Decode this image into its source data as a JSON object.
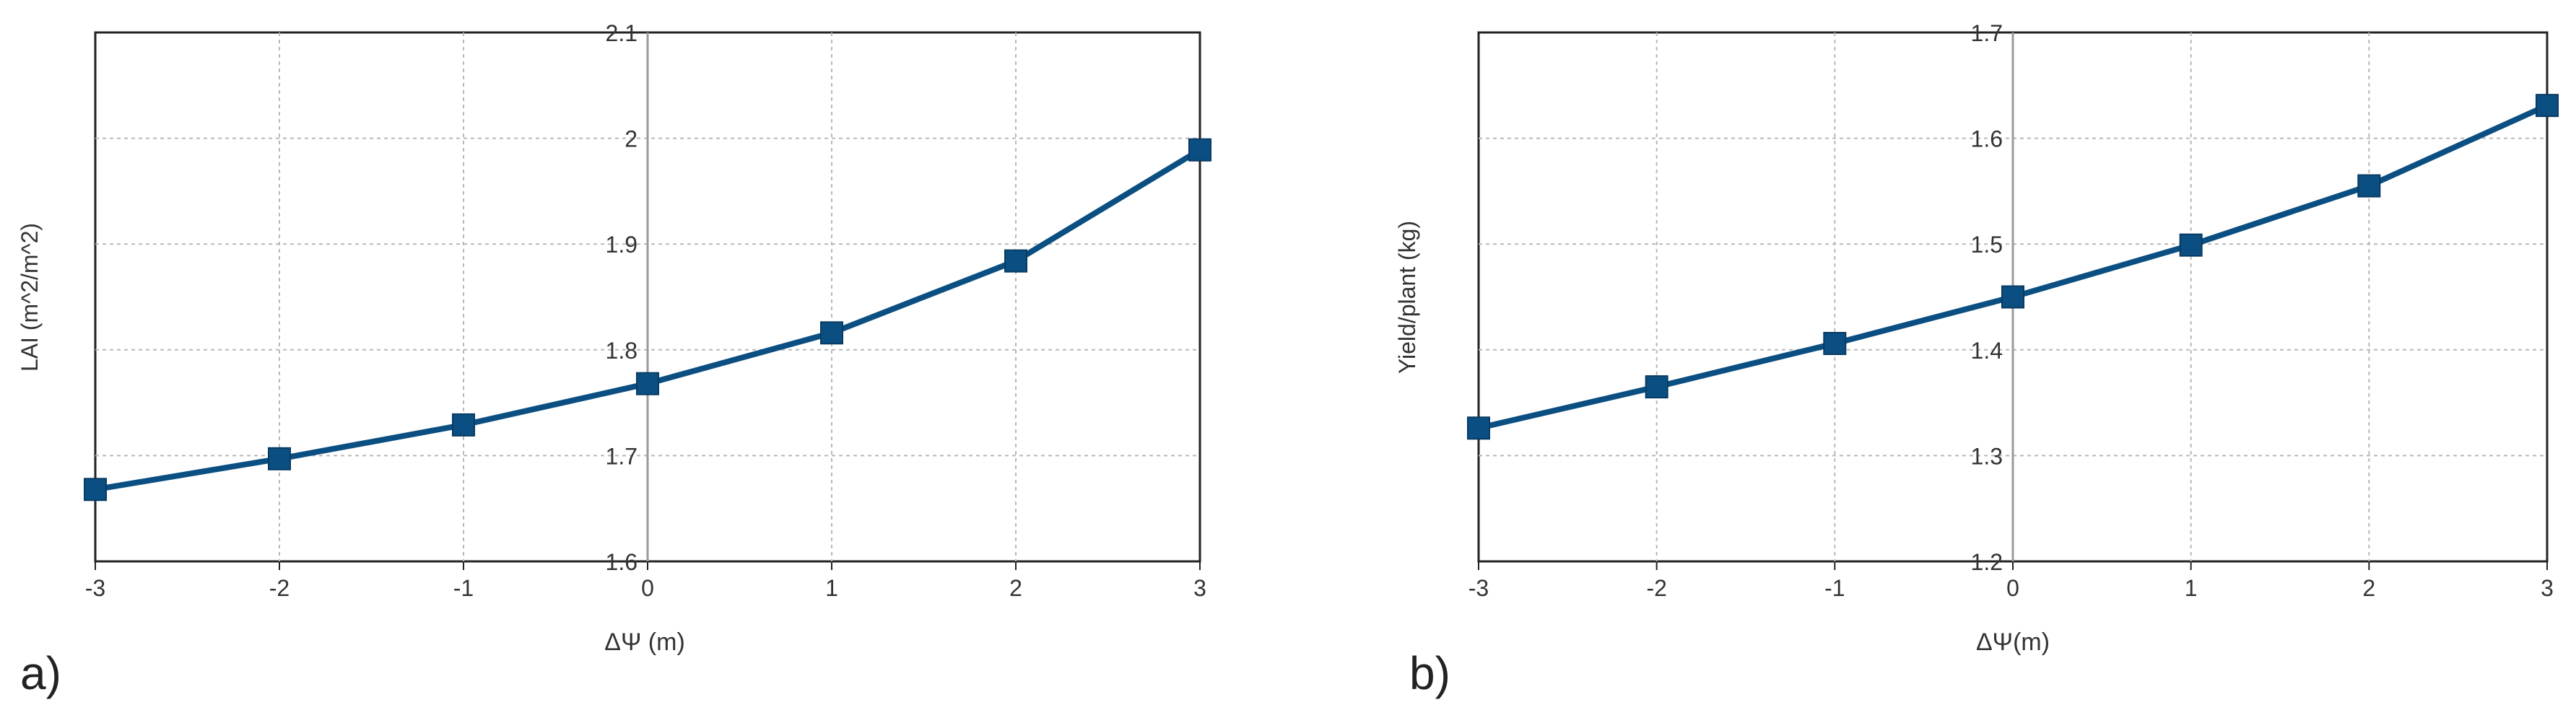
{
  "panels": [
    {
      "label": "a)",
      "chart_data": {
        "type": "line",
        "xlabel": "ΔΨ (m)",
        "ylabel": "LAI (m^2/m^2)",
        "xlim": [
          -3,
          3
        ],
        "ylim": [
          1.6,
          2.1
        ],
        "x_ticks": [
          "-3",
          "-2",
          "-1",
          "0",
          "1",
          "2",
          "3"
        ],
        "y_ticks": [
          "1.6",
          "1.7",
          "1.8",
          "1.9",
          "2",
          "2.1"
        ],
        "grid": true,
        "series": [
          {
            "x": [
              -3,
              -2,
              -1,
              0,
              1,
              2,
              3
            ],
            "values": [
              1.668,
              1.697,
              1.729,
              1.768,
              1.816,
              1.884,
              1.989
            ]
          }
        ],
        "line_color": "#0b4f82",
        "marker_color": "#0b4f82"
      }
    },
    {
      "label": "b)",
      "chart_data": {
        "type": "line",
        "xlabel": "ΔΨ(m)",
        "ylabel": "Yield/plant (kg)",
        "xlim": [
          -3,
          3
        ],
        "ylim": [
          1.2,
          1.7
        ],
        "x_ticks": [
          "-3",
          "-2",
          "-1",
          "0",
          "1",
          "2",
          "3"
        ],
        "y_ticks": [
          "1.2",
          "1.3",
          "1.4",
          "1.5",
          "1.6",
          "1.7"
        ],
        "grid": true,
        "series": [
          {
            "x": [
              -3,
              -2,
              -1,
              0,
              1,
              2,
              3
            ],
            "values": [
              1.326,
              1.365,
              1.406,
              1.45,
              1.499,
              1.555,
              1.631
            ]
          }
        ],
        "line_color": "#0b4f82",
        "marker_color": "#0b4f82"
      }
    }
  ]
}
